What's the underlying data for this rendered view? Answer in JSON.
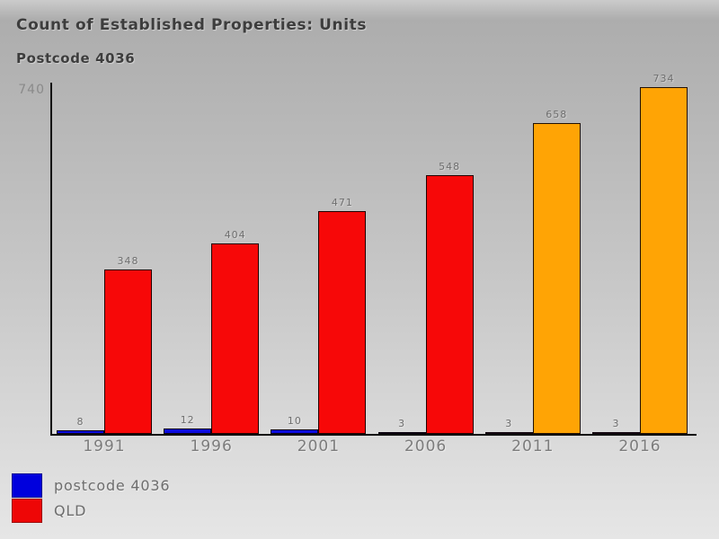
{
  "page": {
    "title": "Count of Established Properties: Units",
    "subtitle": "Postcode 4036"
  },
  "axis": {
    "y_max_label": "740"
  },
  "legend": {
    "items": [
      {
        "label": "postcode 4036",
        "color": "#0000dd"
      },
      {
        "label": "QLD",
        "color": "#ee0606"
      }
    ]
  },
  "chart_data": {
    "type": "bar",
    "title": "Count of Established Properties: Units",
    "subtitle": "Postcode 4036",
    "categories": [
      "1991",
      "1996",
      "2001",
      "2006",
      "2011",
      "2016"
    ],
    "series": [
      {
        "name": "postcode 4036",
        "values": [
          8,
          12,
          10,
          3,
          3,
          3
        ],
        "point_colors": [
          "#0b0bdd",
          "#0b0bdd",
          "#0b0bdd",
          "#001189",
          "#5b3e96",
          "#5b3e96"
        ]
      },
      {
        "name": "QLD",
        "values": [
          348,
          404,
          471,
          548,
          658,
          734
        ],
        "point_colors": [
          "#f70808",
          "#f70808",
          "#f70808",
          "#f70808",
          "#ffa405",
          "#ffa405"
        ]
      }
    ],
    "ylim": [
      0,
      740
    ],
    "xlabel": "",
    "ylabel": "",
    "grid": false,
    "value_labels": true,
    "legend_position": "bottom-left"
  },
  "colors": {
    "background_top": "#adadad",
    "background_bottom": "#e6e6e6",
    "axis": "#111111",
    "muted_text": "#6f6f6f"
  }
}
